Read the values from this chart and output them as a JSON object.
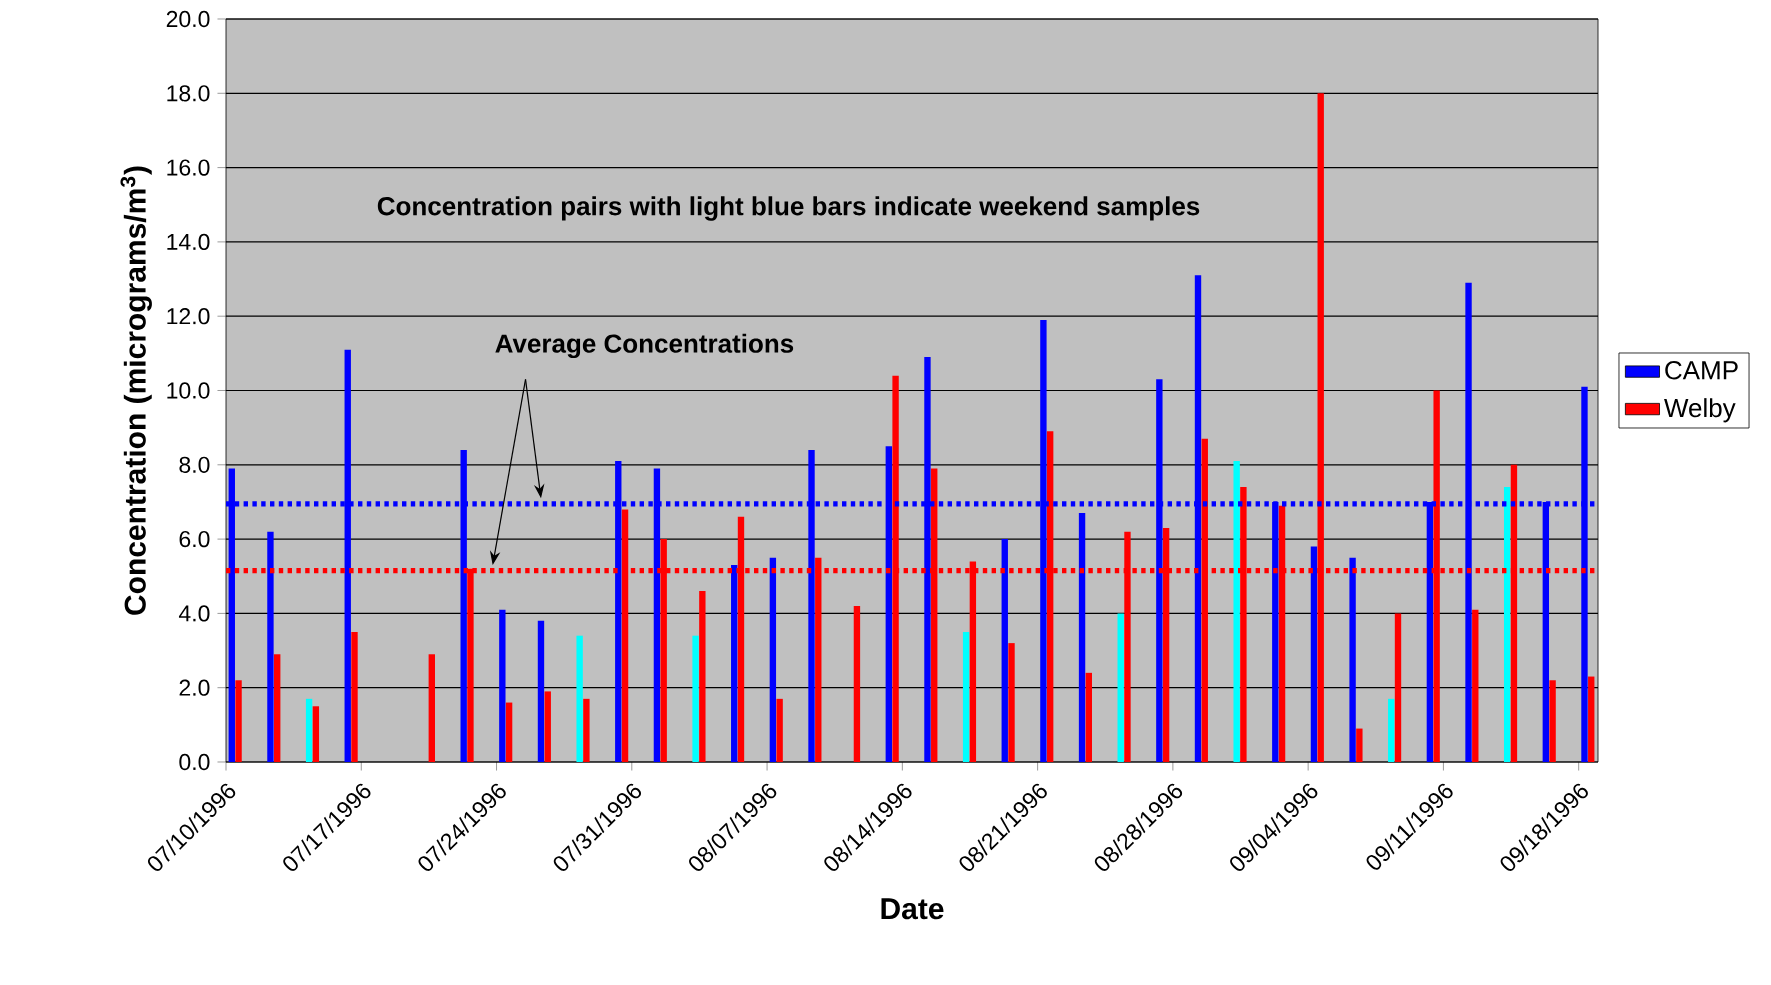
{
  "chart_data": {
    "type": "bar",
    "xlabel": "Date",
    "ylabel": "Concentration (micrograms/m$^{3}$)",
    "x": [
      "1996-07-10",
      "1996-07-12",
      "1996-07-14",
      "1996-07-16",
      "1996-07-18",
      "1996-07-20",
      "1996-07-22",
      "1996-07-24",
      "1996-07-26",
      "1996-07-28",
      "1996-07-30",
      "1996-08-01",
      "1996-08-03",
      "1996-08-05",
      "1996-08-07",
      "1996-08-09",
      "1996-08-11",
      "1996-08-13",
      "1996-08-15",
      "1996-08-17",
      "1996-08-19",
      "1996-08-21",
      "1996-08-23",
      "1996-08-25",
      "1996-08-27",
      "1996-08-29",
      "1996-08-31",
      "1996-09-02",
      "1996-09-04",
      "1996-09-06",
      "1996-09-08",
      "1996-09-10",
      "1996-09-12",
      "1996-09-14",
      "1996-09-16",
      "1996-09-18"
    ],
    "series": [
      {
        "name": "CAMP",
        "color": "#0000ff",
        "values": [
          7.9,
          6.2,
          1.7,
          11.1,
          null,
          null,
          8.4,
          4.1,
          3.8,
          3.4,
          8.1,
          7.9,
          3.4,
          5.3,
          5.5,
          8.4,
          null,
          8.5,
          10.9,
          3.5,
          6.0,
          11.9,
          6.7,
          4.0,
          10.3,
          13.1,
          8.1,
          7.0,
          5.8,
          5.5,
          1.7,
          7.0,
          12.9,
          7.4,
          7.0,
          10.1
        ],
        "colors": [
          "#0000ff",
          "#0000ff",
          "#00ffff",
          "#0000ff",
          "#0000ff",
          "#0000ff",
          "#0000ff",
          "#0000ff",
          "#0000ff",
          "#00ffff",
          "#0000ff",
          "#0000ff",
          "#00ffff",
          "#0000ff",
          "#0000ff",
          "#0000ff",
          "#0000ff",
          "#0000ff",
          "#0000ff",
          "#00ffff",
          "#0000ff",
          "#0000ff",
          "#0000ff",
          "#00ffff",
          "#0000ff",
          "#0000ff",
          "#00ffff",
          "#0000ff",
          "#0000ff",
          "#0000ff",
          "#00ffff",
          "#0000ff",
          "#0000ff",
          "#00ffff",
          "#0000ff",
          "#0000ff"
        ]
      },
      {
        "name": "Welby",
        "color": "#ff0000",
        "values": [
          2.2,
          2.9,
          1.5,
          3.5,
          null,
          2.9,
          5.2,
          1.6,
          1.9,
          1.7,
          6.8,
          6.0,
          4.6,
          6.6,
          1.7,
          5.5,
          4.2,
          10.4,
          7.9,
          5.4,
          3.2,
          8.9,
          2.4,
          6.2,
          6.3,
          8.7,
          7.4,
          6.9,
          18.0,
          0.9,
          4.0,
          10.0,
          4.1,
          8.0,
          2.2,
          2.3
        ]
      }
    ],
    "xlim": [
      "1996-07-10",
      "1996-09-19"
    ],
    "xticks": [
      {
        "value": "1996-07-10",
        "label": "07/10/1996"
      },
      {
        "value": "1996-07-17",
        "label": "07/17/1996"
      },
      {
        "value": "1996-07-24",
        "label": "07/24/1996"
      },
      {
        "value": "1996-07-31",
        "label": "07/31/1996"
      },
      {
        "value": "1996-08-07",
        "label": "08/07/1996"
      },
      {
        "value": "1996-08-14",
        "label": "08/14/1996"
      },
      {
        "value": "1996-08-21",
        "label": "08/21/1996"
      },
      {
        "value": "1996-08-28",
        "label": "08/28/1996"
      },
      {
        "value": "1996-09-04",
        "label": "09/04/1996"
      },
      {
        "value": "1996-09-11",
        "label": "09/11/1996"
      },
      {
        "value": "1996-09-18",
        "label": "09/18/1996"
      }
    ],
    "ylim": [
      0,
      20
    ],
    "yticks": [
      {
        "value": 0,
        "label": "0.0"
      },
      {
        "value": 2,
        "label": "2.0"
      },
      {
        "value": 4,
        "label": "4.0"
      },
      {
        "value": 6,
        "label": "6.0"
      },
      {
        "value": 8,
        "label": "8.0"
      },
      {
        "value": 10,
        "label": "10.0"
      },
      {
        "value": 12,
        "label": "12.0"
      },
      {
        "value": 14,
        "label": "14.0"
      },
      {
        "value": 16,
        "label": "16.0"
      },
      {
        "value": 18,
        "label": "18.0"
      },
      {
        "value": 20,
        "label": "20.0"
      }
    ],
    "ref_lines": [
      {
        "axis": "y",
        "value": 6.95,
        "color": "#0000ff",
        "line_style": "dotted"
      },
      {
        "axis": "y",
        "value": 5.15,
        "color": "#ff0000",
        "line_style": "dotted"
      }
    ],
    "annotations": [
      "Concentration pairs with light blue bars indicate weekend samples",
      "Average Concentrations"
    ],
    "grid": "y",
    "legend": "right"
  }
}
